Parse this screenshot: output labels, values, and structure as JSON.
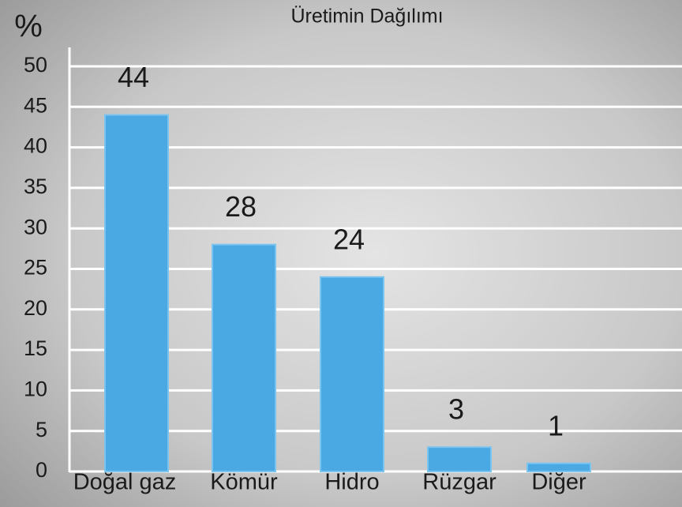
{
  "chart_data": {
    "type": "bar",
    "title": "Üretimin Dağılımı",
    "ylabel": "%",
    "categories": [
      "Doğal gaz",
      "Kömür",
      "Hidro",
      "Rüzgar",
      "Diğer"
    ],
    "values": [
      44,
      28,
      24,
      3,
      1
    ],
    "color": "#4aa8e2",
    "ylim": [
      0,
      50
    ],
    "yticks": [
      0,
      5,
      10,
      15,
      20,
      25,
      30,
      35,
      40,
      45,
      50
    ],
    "grid": true
  }
}
